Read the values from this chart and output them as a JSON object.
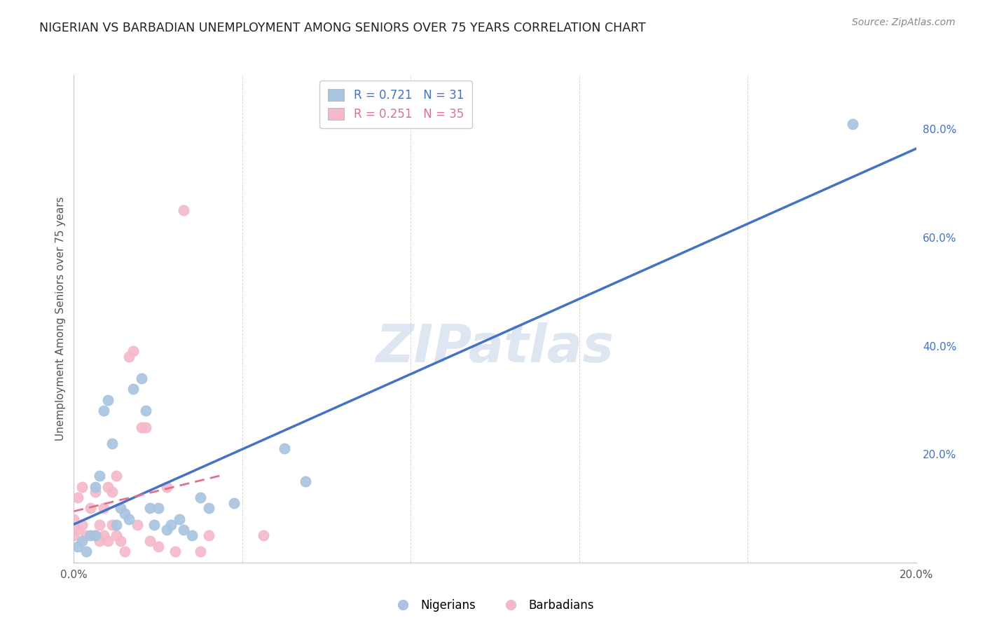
{
  "title": "NIGERIAN VS BARBADIAN UNEMPLOYMENT AMONG SENIORS OVER 75 YEARS CORRELATION CHART",
  "source": "Source: ZipAtlas.com",
  "ylabel": "Unemployment Among Seniors over 75 years",
  "xlim": [
    0.0,
    0.2
  ],
  "ylim": [
    0.0,
    0.9
  ],
  "x_ticks": [
    0.0,
    0.04,
    0.08,
    0.12,
    0.16,
    0.2
  ],
  "x_tick_labels": [
    "0.0%",
    "",
    "",
    "",
    "",
    "20.0%"
  ],
  "y_ticks_right": [
    0.0,
    0.2,
    0.4,
    0.6,
    0.8
  ],
  "y_tick_labels_right": [
    "",
    "20.0%",
    "40.0%",
    "60.0%",
    "80.0%"
  ],
  "nigerian_R": 0.721,
  "nigerian_N": 31,
  "barbadian_R": 0.251,
  "barbadian_N": 35,
  "nigerian_color": "#a8c4e0",
  "barbadian_color": "#f4b8c8",
  "nigerian_line_color": "#4472c4",
  "barbadian_line_color": "#e07090",
  "watermark": "ZIPatlas",
  "nigerians_x": [
    0.001,
    0.002,
    0.003,
    0.004,
    0.005,
    0.005,
    0.006,
    0.007,
    0.008,
    0.009,
    0.01,
    0.011,
    0.012,
    0.013,
    0.014,
    0.016,
    0.017,
    0.018,
    0.019,
    0.02,
    0.022,
    0.023,
    0.025,
    0.026,
    0.028,
    0.03,
    0.032,
    0.038,
    0.05,
    0.055,
    0.185
  ],
  "nigerians_y": [
    0.03,
    0.04,
    0.02,
    0.05,
    0.05,
    0.14,
    0.16,
    0.28,
    0.3,
    0.22,
    0.07,
    0.1,
    0.09,
    0.08,
    0.32,
    0.34,
    0.28,
    0.1,
    0.07,
    0.1,
    0.06,
    0.07,
    0.08,
    0.06,
    0.05,
    0.12,
    0.1,
    0.11,
    0.21,
    0.15,
    0.81
  ],
  "barbadians_x": [
    0.0,
    0.0,
    0.001,
    0.001,
    0.002,
    0.002,
    0.003,
    0.004,
    0.005,
    0.005,
    0.006,
    0.006,
    0.007,
    0.007,
    0.008,
    0.008,
    0.009,
    0.009,
    0.01,
    0.01,
    0.011,
    0.012,
    0.013,
    0.014,
    0.015,
    0.016,
    0.017,
    0.018,
    0.02,
    0.022,
    0.024,
    0.026,
    0.03,
    0.032,
    0.045
  ],
  "barbadians_y": [
    0.05,
    0.08,
    0.06,
    0.12,
    0.07,
    0.14,
    0.05,
    0.1,
    0.05,
    0.13,
    0.04,
    0.07,
    0.05,
    0.1,
    0.04,
    0.14,
    0.07,
    0.13,
    0.05,
    0.16,
    0.04,
    0.02,
    0.38,
    0.39,
    0.07,
    0.25,
    0.25,
    0.04,
    0.03,
    0.14,
    0.02,
    0.65,
    0.02,
    0.05,
    0.05
  ],
  "barbadian_outlier_x": [
    0.0
  ],
  "barbadian_outlier_y": [
    0.65
  ],
  "nigerian_line_x": [
    0.0,
    0.2
  ],
  "nigerian_line_y": [
    0.02,
    0.74
  ],
  "barbadian_line_x": [
    0.0,
    0.035
  ],
  "barbadian_line_y": [
    0.085,
    0.27
  ]
}
